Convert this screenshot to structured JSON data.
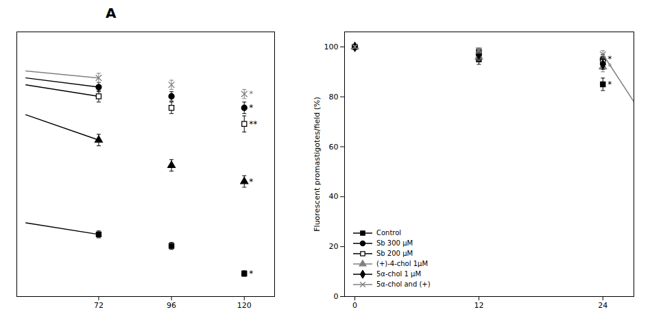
{
  "chart_data": [
    {
      "type": "scatter",
      "title": "A",
      "x": [
        72,
        96,
        120
      ],
      "x_start": 48,
      "series": [
        {
          "color": "black",
          "marker": "square",
          "values": [
            27,
            22,
            10
          ],
          "errors": [
            1.5,
            1.5,
            1.2
          ],
          "y_start": 32,
          "annotation": "*"
        },
        {
          "color": "black",
          "marker": "triangle",
          "values": [
            68,
            57,
            50
          ],
          "errors": [
            2.5,
            2.5,
            2.5
          ],
          "y_start": 79,
          "annotation": "*"
        },
        {
          "color": "black",
          "marker": "square-open",
          "values": [
            87,
            82,
            75
          ],
          "errors": [
            2.5,
            2.5,
            3.5
          ],
          "y_start": 92,
          "annotation": "**"
        },
        {
          "color": "black",
          "marker": "circle",
          "values": [
            91,
            87,
            82
          ],
          "errors": [
            2.0,
            2.0,
            2.5
          ],
          "y_start": 95,
          "annotation": "*"
        },
        {
          "color": "gray",
          "marker": "times",
          "values": [
            95,
            92,
            88
          ],
          "errors": [
            2.0,
            2.0,
            2.0
          ],
          "y_start": 98,
          "annotation": "*"
        }
      ],
      "xlim": [
        45,
        130
      ],
      "ylim": [
        0,
        115
      ],
      "xticks": [
        72,
        96,
        120
      ],
      "tick_labels": "x",
      "grid": false
    },
    {
      "type": "scatter",
      "ylabel": "Fluorescent promastigotes/field (%)",
      "x": [
        0,
        12,
        24
      ],
      "series": [
        {
          "name": "Control",
          "color": "black",
          "marker": "square",
          "values": [
            100,
            95,
            85
          ],
          "errors": [
            0.5,
            2.0,
            2.5
          ],
          "annotation": "*"
        },
        {
          "name": "Sb 300 μM",
          "color": "black",
          "marker": "circle",
          "values": [
            100,
            97,
            95
          ],
          "errors": [
            0.5,
            1.5,
            2.0
          ],
          "annotation": "*"
        },
        {
          "name": "Sb 200 μM",
          "color": "black",
          "marker": "square-open",
          "values": [
            100,
            98,
            94
          ],
          "errors": [
            0.5,
            1.5,
            2.0
          ]
        },
        {
          "name": "(+)-4-chol 1μM",
          "color": "gray",
          "marker": "triangle",
          "values": [
            100,
            96,
            92
          ],
          "errors": [
            0.5,
            1.5,
            2.0
          ],
          "annotation": "*"
        },
        {
          "name": "5α-chol 1 μM",
          "color": "black",
          "marker": "diamond",
          "values": [
            100,
            97,
            93
          ],
          "errors": [
            0.5,
            1.5,
            2.0
          ]
        },
        {
          "name": "5α-chol and (+)",
          "color": "gray",
          "marker": "times",
          "values": [
            100,
            98.5,
            97
          ],
          "errors": [
            0.5,
            1.0,
            1.5
          ],
          "extrapolate_to": 27,
          "extrapolate_value": 78
        }
      ],
      "xlim": [
        -1,
        27
      ],
      "ylim": [
        0,
        106
      ],
      "xticks": [
        0,
        12,
        24
      ],
      "yticks": [
        0,
        20,
        40,
        60,
        80,
        100
      ],
      "legend": "lower left",
      "grid": false
    }
  ]
}
